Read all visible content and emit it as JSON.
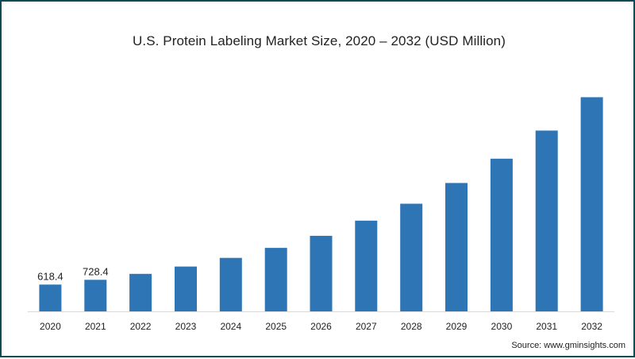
{
  "chart_data": {
    "type": "bar",
    "title": "U.S. Protein Labeling Market Size, 2020 – 2032 (USD Million)",
    "xlabel": "",
    "ylabel": "",
    "categories": [
      "2020",
      "2021",
      "2022",
      "2023",
      "2024",
      "2025",
      "2026",
      "2027",
      "2028",
      "2029",
      "2030",
      "2031",
      "2032"
    ],
    "values": [
      618.4,
      728.4,
      865,
      1035,
      1235,
      1465,
      1745,
      2095,
      2485,
      2965,
      3525,
      4175,
      4945
    ],
    "data_labels": [
      "618.4",
      "728.4",
      "",
      "",
      "",
      "",
      "",
      "",
      "",
      "",
      "",
      "",
      ""
    ],
    "ylim": [
      0,
      5320
    ],
    "grid": false,
    "legend": "none",
    "bar_color": "#2e75b6",
    "axis_color": "#d9d9d9"
  },
  "source": "Source: www.gminsights.com"
}
